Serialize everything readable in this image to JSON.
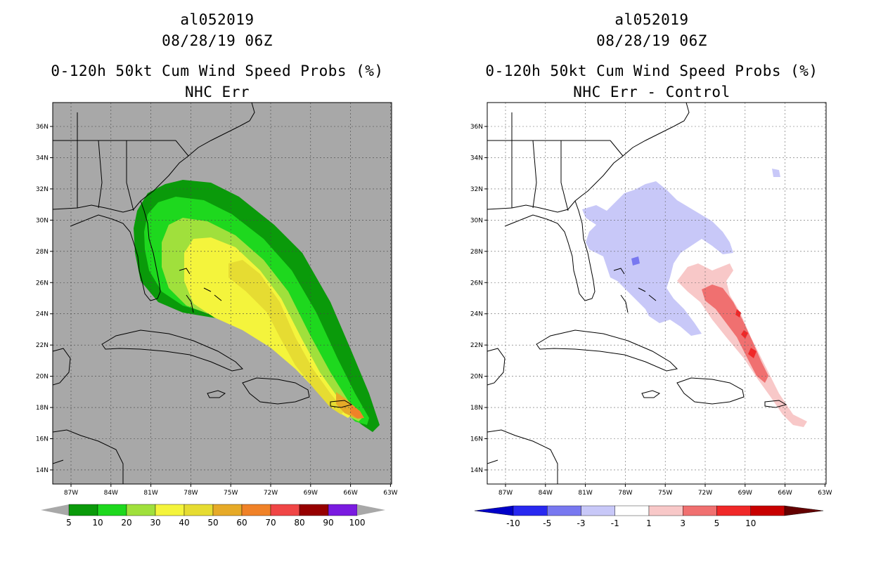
{
  "left": {
    "title_storm": "al052019",
    "title_date": "08/28/19 06Z",
    "title_product": "0-120h 50kt Cum Wind Speed Probs (%)",
    "title_sub": "NHC Err",
    "lat_labels": [
      "36N",
      "34N",
      "32N",
      "30N",
      "28N",
      "26N",
      "24N",
      "22N",
      "20N",
      "18N",
      "16N",
      "14N"
    ],
    "lon_labels": [
      "87W",
      "84W",
      "81W",
      "78W",
      "75W",
      "72W",
      "69W",
      "66W",
      "63W"
    ],
    "colorbar": {
      "labels": [
        "5",
        "10",
        "20",
        "30",
        "40",
        "50",
        "60",
        "70",
        "80",
        "90",
        "100"
      ],
      "colors": [
        "#0a9a0a",
        "#1ed81e",
        "#a0e03c",
        "#f4f43c",
        "#e6dc32",
        "#e6aa28",
        "#f08228",
        "#f04646",
        "#960000",
        "#7a1be0"
      ]
    }
  },
  "right": {
    "title_storm": "al052019",
    "title_date": "08/28/19 06Z",
    "title_product": "0-120h 50kt Cum Wind Speed Probs (%)",
    "title_sub": "NHC Err - Control",
    "lat_labels": [
      "36N",
      "34N",
      "32N",
      "30N",
      "28N",
      "26N",
      "24N",
      "22N",
      "20N",
      "18N",
      "16N",
      "14N"
    ],
    "lon_labels": [
      "87W",
      "84W",
      "81W",
      "78W",
      "75W",
      "72W",
      "69W",
      "66W",
      "63W"
    ],
    "colorbar": {
      "labels": [
        "-10",
        "-5",
        "-3",
        "-1",
        "1",
        "3",
        "5",
        "10"
      ],
      "colors": [
        "#0000c8",
        "#2828f0",
        "#7878f0",
        "#c8c8f8",
        "#ffffff",
        "#f8c8c8",
        "#f07070",
        "#f02828",
        "#c80000",
        "#640000"
      ]
    }
  }
}
